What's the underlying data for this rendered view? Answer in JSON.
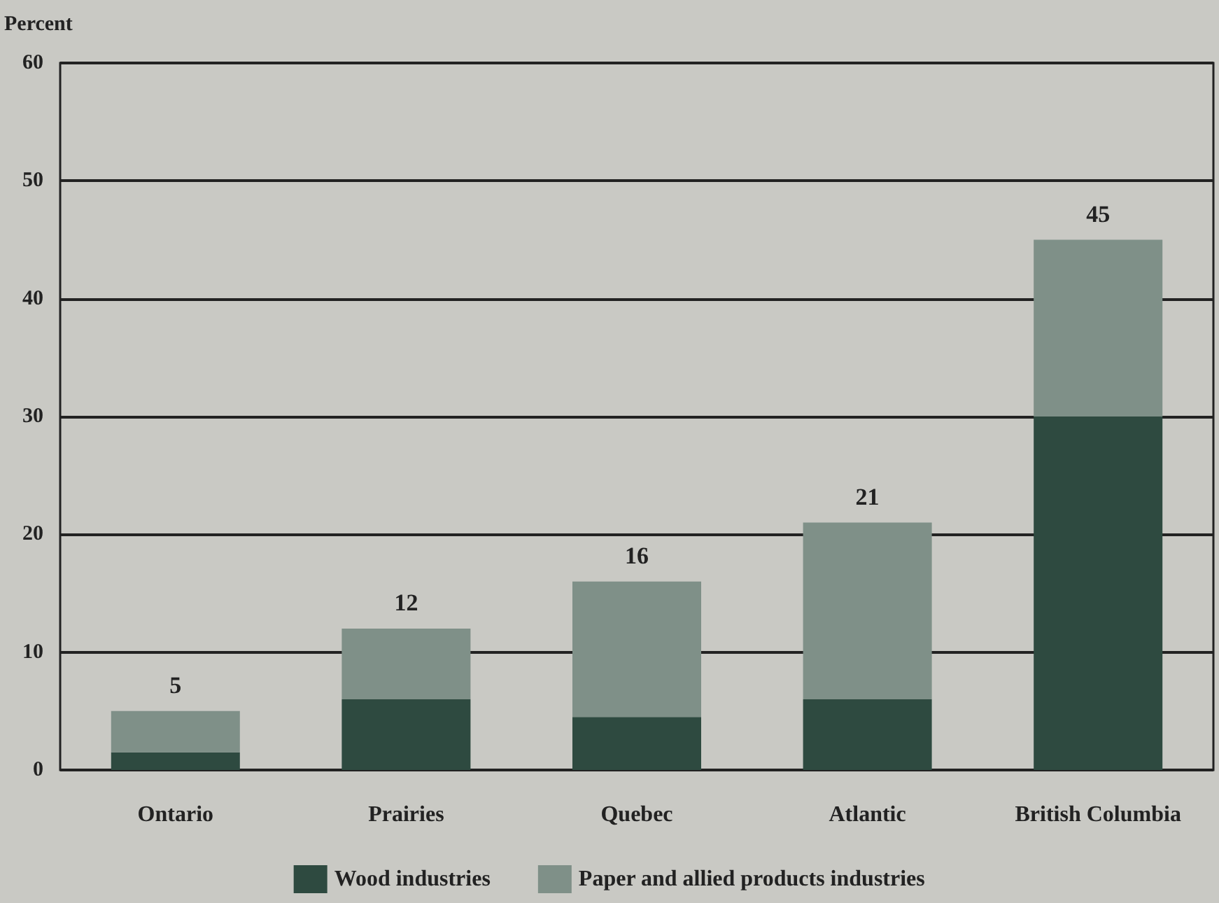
{
  "chart_data": {
    "type": "bar",
    "ylabel": "Percent",
    "categories": [
      "Ontario",
      "Prairies",
      "Quebec",
      "Atlantic",
      "British Columbia"
    ],
    "stacked": true,
    "series": [
      {
        "name": "Wood industries",
        "color": "#2e4a40",
        "values": [
          1.5,
          6,
          4.5,
          6,
          30
        ]
      },
      {
        "name": "Paper and allied products industries",
        "color": "#7f9088",
        "values": [
          3.5,
          6,
          11.5,
          15,
          15
        ]
      }
    ],
    "totals": [
      "5",
      "12",
      "16",
      "21",
      "45"
    ],
    "ylim": [
      0,
      60
    ],
    "yticks": [
      0,
      10,
      20,
      30,
      40,
      50,
      60
    ],
    "grid": "y",
    "legend": "bottom"
  }
}
